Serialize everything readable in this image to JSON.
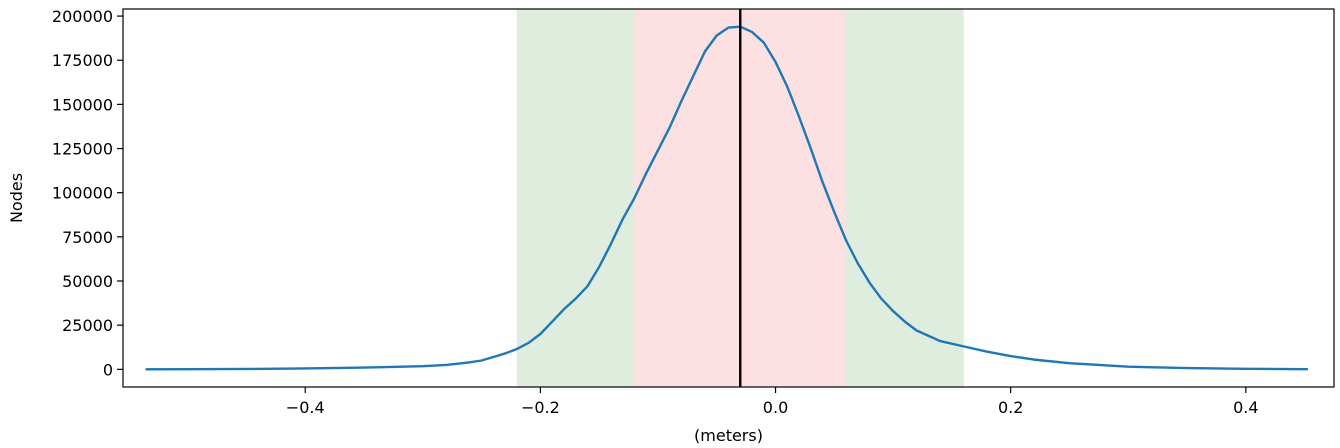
{
  "chart_data": {
    "type": "line",
    "title": "",
    "xlabel": "(meters)",
    "ylabel": "Nodes",
    "xlim": [
      -0.555,
      0.475
    ],
    "ylim": [
      -10000,
      204000
    ],
    "grid": false,
    "x_ticks": [
      {
        "value": -0.4,
        "label": "−0.4"
      },
      {
        "value": -0.2,
        "label": "−0.2"
      },
      {
        "value": 0.0,
        "label": "0.0"
      },
      {
        "value": 0.2,
        "label": "0.2"
      },
      {
        "value": 0.4,
        "label": "0.4"
      }
    ],
    "y_ticks": [
      {
        "value": 0,
        "label": "0"
      },
      {
        "value": 25000,
        "label": "25000"
      },
      {
        "value": 50000,
        "label": "50000"
      },
      {
        "value": 75000,
        "label": "75000"
      },
      {
        "value": 100000,
        "label": "100000"
      },
      {
        "value": 125000,
        "label": "125000"
      },
      {
        "value": 150000,
        "label": "150000"
      },
      {
        "value": 175000,
        "label": "175000"
      },
      {
        "value": 200000,
        "label": "200000"
      }
    ],
    "bands": [
      {
        "from": -0.22,
        "to": 0.16,
        "color": "#dfeddf"
      },
      {
        "from": -0.12,
        "to": 0.06,
        "color": "#fde0e2"
      }
    ],
    "vline": {
      "x": -0.03,
      "color": "#000000"
    },
    "series": [
      {
        "color": "#1f77b4",
        "points": [
          [
            -0.535,
            0
          ],
          [
            -0.5,
            100
          ],
          [
            -0.45,
            200
          ],
          [
            -0.4,
            500
          ],
          [
            -0.35,
            1000
          ],
          [
            -0.3,
            1800
          ],
          [
            -0.28,
            2500
          ],
          [
            -0.26,
            4000
          ],
          [
            -0.25,
            5000
          ],
          [
            -0.24,
            7000
          ],
          [
            -0.23,
            9000
          ],
          [
            -0.22,
            11500
          ],
          [
            -0.21,
            15000
          ],
          [
            -0.2,
            20000
          ],
          [
            -0.19,
            27000
          ],
          [
            -0.18,
            34000
          ],
          [
            -0.17,
            40000
          ],
          [
            -0.16,
            47000
          ],
          [
            -0.15,
            58000
          ],
          [
            -0.14,
            71000
          ],
          [
            -0.13,
            85000
          ],
          [
            -0.12,
            97000
          ],
          [
            -0.11,
            111000
          ],
          [
            -0.1,
            124000
          ],
          [
            -0.09,
            137000
          ],
          [
            -0.08,
            152000
          ],
          [
            -0.07,
            166000
          ],
          [
            -0.06,
            180000
          ],
          [
            -0.05,
            189000
          ],
          [
            -0.04,
            193500
          ],
          [
            -0.03,
            194000
          ],
          [
            -0.02,
            191000
          ],
          [
            -0.01,
            185000
          ],
          [
            0.0,
            174000
          ],
          [
            0.01,
            160000
          ],
          [
            0.02,
            143000
          ],
          [
            0.03,
            125000
          ],
          [
            0.04,
            106000
          ],
          [
            0.05,
            89000
          ],
          [
            0.06,
            73000
          ],
          [
            0.07,
            60000
          ],
          [
            0.08,
            49000
          ],
          [
            0.09,
            40000
          ],
          [
            0.1,
            33000
          ],
          [
            0.11,
            27000
          ],
          [
            0.12,
            22000
          ],
          [
            0.13,
            19000
          ],
          [
            0.14,
            16000
          ],
          [
            0.16,
            13000
          ],
          [
            0.18,
            10000
          ],
          [
            0.2,
            7500
          ],
          [
            0.22,
            5500
          ],
          [
            0.25,
            3500
          ],
          [
            0.3,
            1500
          ],
          [
            0.35,
            700
          ],
          [
            0.4,
            300
          ],
          [
            0.452,
            100
          ]
        ]
      }
    ]
  }
}
